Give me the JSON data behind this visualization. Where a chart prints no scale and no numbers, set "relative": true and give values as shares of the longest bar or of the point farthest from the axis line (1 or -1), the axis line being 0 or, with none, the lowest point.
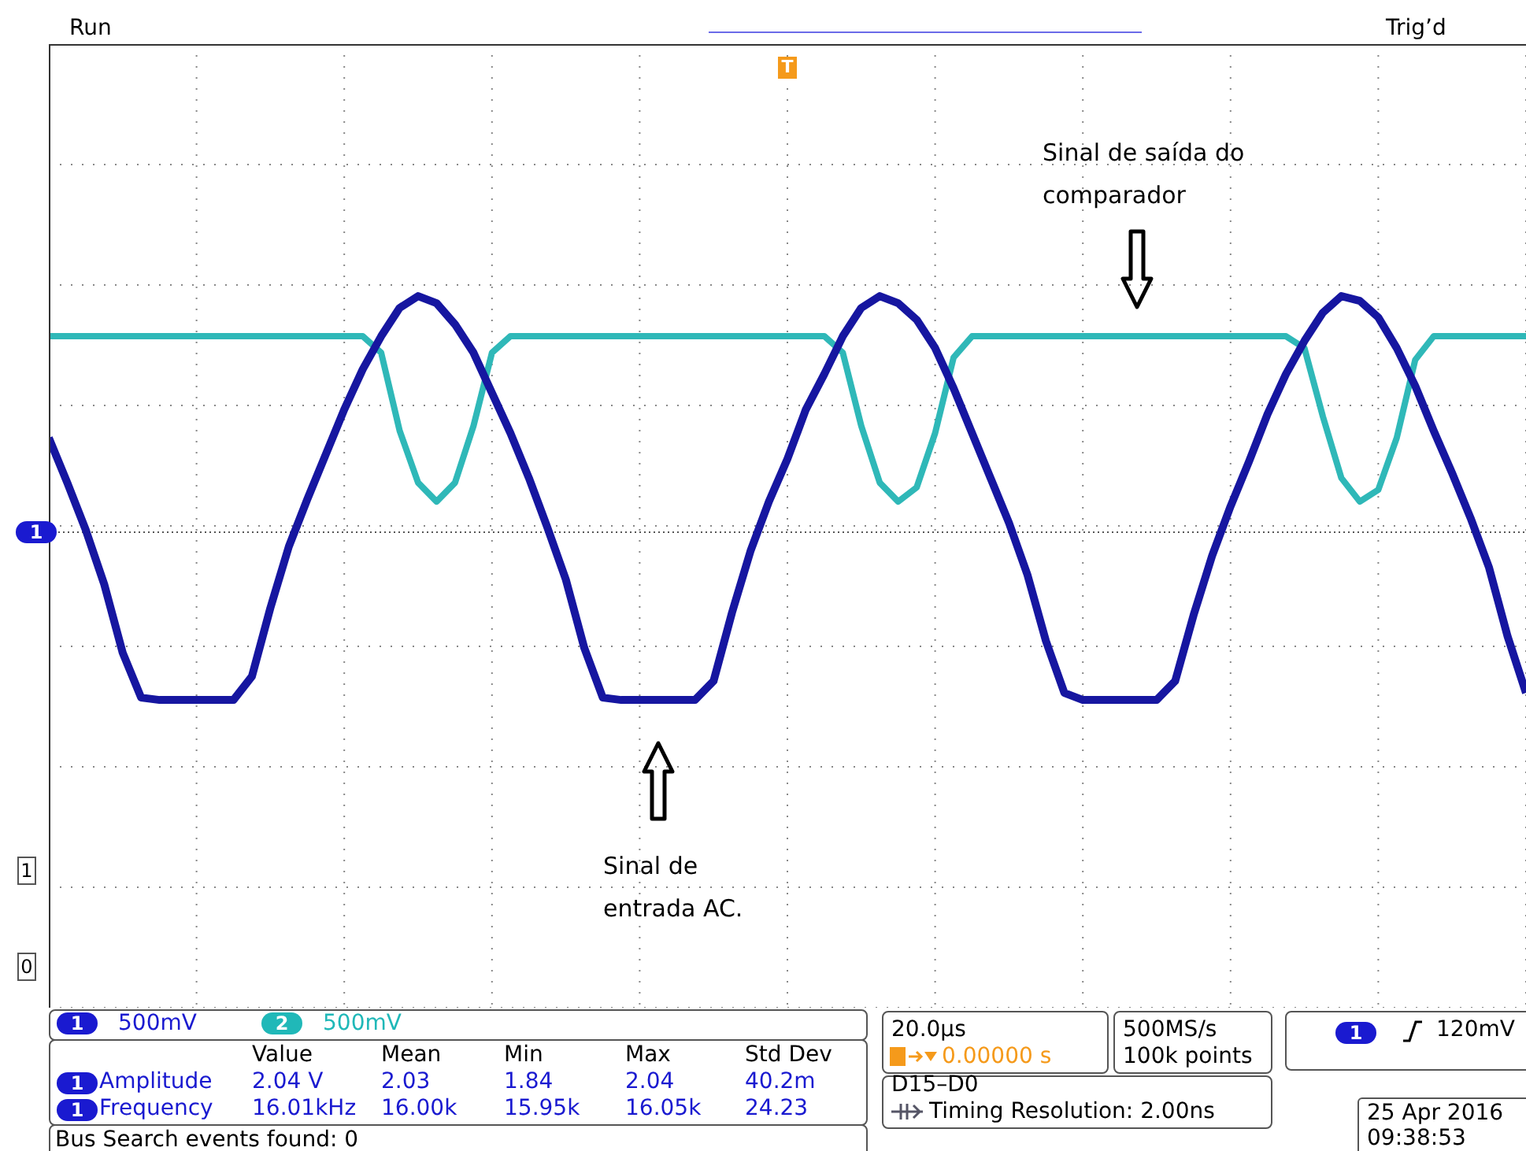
{
  "chart_data": {
    "type": "line",
    "relative": true,
    "grid": true,
    "categories": [
      null,
      null,
      null,
      null,
      null,
      null,
      null,
      null,
      null,
      null,
      null,
      null,
      null,
      null,
      null,
      null,
      null,
      null,
      null,
      null,
      null,
      null,
      null,
      null,
      null,
      null,
      null,
      null,
      null,
      null,
      null,
      null,
      null,
      null,
      null,
      null,
      null,
      null,
      null,
      null,
      null,
      null,
      null,
      null,
      null,
      null,
      null,
      null,
      null,
      null,
      null,
      null,
      null,
      null,
      null,
      null,
      null,
      null,
      null,
      null,
      null,
      null,
      null,
      null,
      null,
      null,
      null,
      null,
      null,
      null,
      null,
      null,
      null,
      null,
      null,
      null,
      null,
      null,
      null,
      null,
      null
    ],
    "series": [
      {
        "color": "#2fb8b8",
        "values": [
          0.83,
          0.83,
          0.83,
          0.83,
          0.83,
          0.83,
          0.83,
          0.83,
          0.83,
          0.83,
          0.83,
          0.83,
          0.83,
          0.83,
          0.83,
          0.83,
          0.83,
          0.83,
          0.76,
          0.43,
          0.21,
          0.13,
          0.21,
          0.45,
          0.76,
          0.83,
          0.83,
          0.83,
          0.83,
          0.83,
          0.83,
          0.83,
          0.83,
          0.83,
          0.83,
          0.83,
          0.83,
          0.83,
          0.83,
          0.83,
          0.83,
          0.83,
          0.83,
          0.76,
          0.45,
          0.21,
          0.13,
          0.19,
          0.42,
          0.74,
          0.83,
          0.83,
          0.83,
          0.83,
          0.83,
          0.83,
          0.83,
          0.83,
          0.83,
          0.83,
          0.83,
          0.83,
          0.83,
          0.83,
          0.83,
          0.83,
          0.83,
          0.83,
          0.78,
          0.49,
          0.23,
          0.13,
          0.18,
          0.4,
          0.73,
          0.83,
          0.83,
          0.83,
          0.83,
          0.83,
          0.83
        ]
      },
      {
        "color": "#1616a0",
        "values": [
          0.4,
          0.21,
          0.01,
          -0.22,
          -0.51,
          -0.7,
          -0.71,
          -0.71,
          -0.71,
          -0.71,
          -0.71,
          -0.61,
          -0.32,
          -0.06,
          0.14,
          0.33,
          0.52,
          0.69,
          0.83,
          0.95,
          1,
          0.97,
          0.88,
          0.76,
          0.59,
          0.42,
          0.23,
          0.02,
          -0.2,
          -0.49,
          -0.7,
          -0.71,
          -0.71,
          -0.71,
          -0.71,
          -0.71,
          -0.63,
          -0.34,
          -0.08,
          0.13,
          0.31,
          0.52,
          0.67,
          0.83,
          0.95,
          1,
          0.97,
          0.9,
          0.78,
          0.61,
          0.42,
          0.23,
          0.04,
          -0.18,
          -0.46,
          -0.68,
          -0.71,
          -0.71,
          -0.71,
          -0.71,
          -0.71,
          -0.63,
          -0.35,
          -0.1,
          0.11,
          0.3,
          0.5,
          0.67,
          0.81,
          0.93,
          1,
          0.98,
          0.91,
          0.78,
          0.62,
          0.43,
          0.25,
          0.06,
          -0.15,
          -0.44,
          -0.68
        ]
      }
    ],
    "annotations": [
      "Run",
      "Trig’d",
      "Sinal de saída do comparador",
      "Sinal de entrada AC.",
      "1",
      "500mV",
      "2",
      "500mV",
      "Value",
      "Mean",
      "Min",
      "Max",
      "Std Dev",
      "1",
      "Amplitude",
      "2.04 V",
      "2.03",
      "1.84",
      "2.04",
      "40.2m",
      "1",
      "Frequency",
      "16.01kHz",
      "16.00k",
      "15.95k",
      "16.05k",
      "24.23",
      "Bus Search events found: 0",
      "20.0µs",
      "0.00000 s",
      "500MS/s",
      "100k points",
      "1",
      "120mV",
      "D15–D0",
      "Timing Resolution: 2.00ns",
      "25 Apr 2016",
      "09:38:53",
      "1",
      "1",
      "0",
      "T"
    ],
    "ref_lines": [
      {
        "axis": "y",
        "value": 0,
        "color": "#555555",
        "line_style": "dotted"
      }
    ]
  }
}
